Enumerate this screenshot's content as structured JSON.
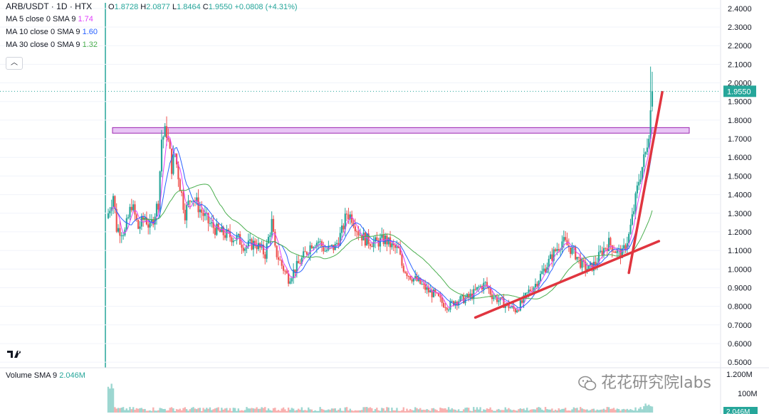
{
  "header": {
    "symbol": "ARB/USDT",
    "interval": "1D",
    "exchange": "HTX",
    "ohlc": {
      "open_label": "O",
      "open": "1.8728",
      "high_label": "H",
      "high": "2.0877",
      "low_label": "L",
      "low": "1.8464",
      "close_label": "C",
      "close": "1.9550",
      "change": "+0.0808 (+4.31%)"
    }
  },
  "indicators": [
    {
      "label": "MA 5 close 0 SMA 9",
      "value": "1.74",
      "color": "#e040fb"
    },
    {
      "label": "MA 10 close 0 SMA 9",
      "value": "1.60",
      "color": "#2962ff"
    },
    {
      "label": "MA 30 close 0 SMA 9",
      "value": "1.32",
      "color": "#4caf50"
    }
  ],
  "volume": {
    "label": "Volume SMA 9",
    "value": "2.046M",
    "axis_labels": [
      "1.200M",
      "100M"
    ],
    "current": "2.046M"
  },
  "watermark": "花花研究院labs",
  "icons": {
    "collapse": "chevron-up-icon",
    "logo": "tradingview-logo-icon",
    "watermark": "wechat-icon"
  },
  "colors": {
    "up": "#26a69a",
    "down": "#ef5350",
    "ma5": "#e040fb",
    "ma10": "#2962ff",
    "ma30": "#4caf50",
    "trendline": "#e0353f",
    "zone_fill": "#e8c5f5",
    "zone_stroke": "#9c27b0",
    "price_label": "#26a69a"
  },
  "chart_data": {
    "type": "candlestick",
    "y_axis": {
      "ticks": [
        "2.4000",
        "2.3000",
        "2.2000",
        "2.1000",
        "2.0000",
        "1.9000",
        "1.8000",
        "1.7000",
        "1.6000",
        "1.5000",
        "1.4000",
        "1.3000",
        "1.2000",
        "1.1000",
        "1.0000",
        "0.9000",
        "0.8000",
        "0.7000",
        "0.6000",
        "0.5000"
      ],
      "range": [
        0.47,
        2.43
      ]
    },
    "last_price": "1.9550",
    "price_zone": [
      1.73,
      1.76
    ],
    "close_path": [
      [
        0,
        1.3
      ],
      [
        3,
        1.4
      ],
      [
        5,
        1.22
      ],
      [
        10,
        1.2
      ],
      [
        14,
        1.35
      ],
      [
        18,
        1.22
      ],
      [
        22,
        1.28
      ],
      [
        25,
        1.22
      ],
      [
        30,
        1.36
      ],
      [
        32,
        1.7
      ],
      [
        35,
        1.74
      ],
      [
        36,
        1.68
      ],
      [
        38,
        1.55
      ],
      [
        40,
        1.62
      ],
      [
        43,
        1.45
      ],
      [
        46,
        1.3
      ],
      [
        50,
        1.4
      ],
      [
        55,
        1.32
      ],
      [
        60,
        1.25
      ],
      [
        66,
        1.2
      ],
      [
        72,
        1.18
      ],
      [
        78,
        1.16
      ],
      [
        82,
        1.12
      ],
      [
        88,
        1.14
      ],
      [
        94,
        1.08
      ],
      [
        98,
        1.25
      ],
      [
        100,
        1.1
      ],
      [
        104,
        1.02
      ],
      [
        108,
        0.95
      ],
      [
        112,
        1.0
      ],
      [
        118,
        1.08
      ],
      [
        122,
        1.14
      ],
      [
        126,
        1.15
      ],
      [
        130,
        1.1
      ],
      [
        136,
        1.12
      ],
      [
        140,
        1.2
      ],
      [
        143,
        1.3
      ],
      [
        146,
        1.28
      ],
      [
        150,
        1.2
      ],
      [
        154,
        1.16
      ],
      [
        160,
        1.14
      ],
      [
        166,
        1.16
      ],
      [
        170,
        1.12
      ],
      [
        174,
        1.1
      ],
      [
        176,
        1.02
      ],
      [
        180,
        0.97
      ],
      [
        186,
        0.93
      ],
      [
        192,
        0.88
      ],
      [
        196,
        0.86
      ],
      [
        200,
        0.82
      ],
      [
        204,
        0.8
      ],
      [
        208,
        0.83
      ],
      [
        214,
        0.84
      ],
      [
        218,
        0.86
      ],
      [
        222,
        0.9
      ],
      [
        226,
        0.92
      ],
      [
        230,
        0.86
      ],
      [
        236,
        0.82
      ],
      [
        240,
        0.8
      ],
      [
        244,
        0.78
      ],
      [
        248,
        0.82
      ],
      [
        252,
        0.88
      ],
      [
        256,
        0.92
      ],
      [
        260,
        0.98
      ],
      [
        264,
        1.04
      ],
      [
        268,
        1.1
      ],
      [
        272,
        1.15
      ],
      [
        276,
        1.12
      ],
      [
        280,
        1.08
      ],
      [
        284,
        1.02
      ],
      [
        288,
        1.0
      ],
      [
        292,
        1.03
      ],
      [
        296,
        1.1
      ],
      [
        300,
        1.14
      ],
      [
        304,
        1.1
      ],
      [
        308,
        1.08
      ],
      [
        312,
        1.18
      ],
      [
        315,
        1.32
      ],
      [
        318,
        1.48
      ],
      [
        320,
        1.55
      ],
      [
        322,
        1.62
      ],
      [
        324,
        1.75
      ],
      [
        326,
        1.95
      ]
    ],
    "ma_series": [
      "MA 5",
      "MA 10",
      "MA 30"
    ],
    "trendlines": [
      {
        "from": [
          220,
          0.74
        ],
        "to": [
          330,
          1.15
        ]
      },
      {
        "from": [
          312,
          0.98
        ],
        "to": [
          332,
          1.95
        ]
      }
    ],
    "bar_count": 330
  }
}
